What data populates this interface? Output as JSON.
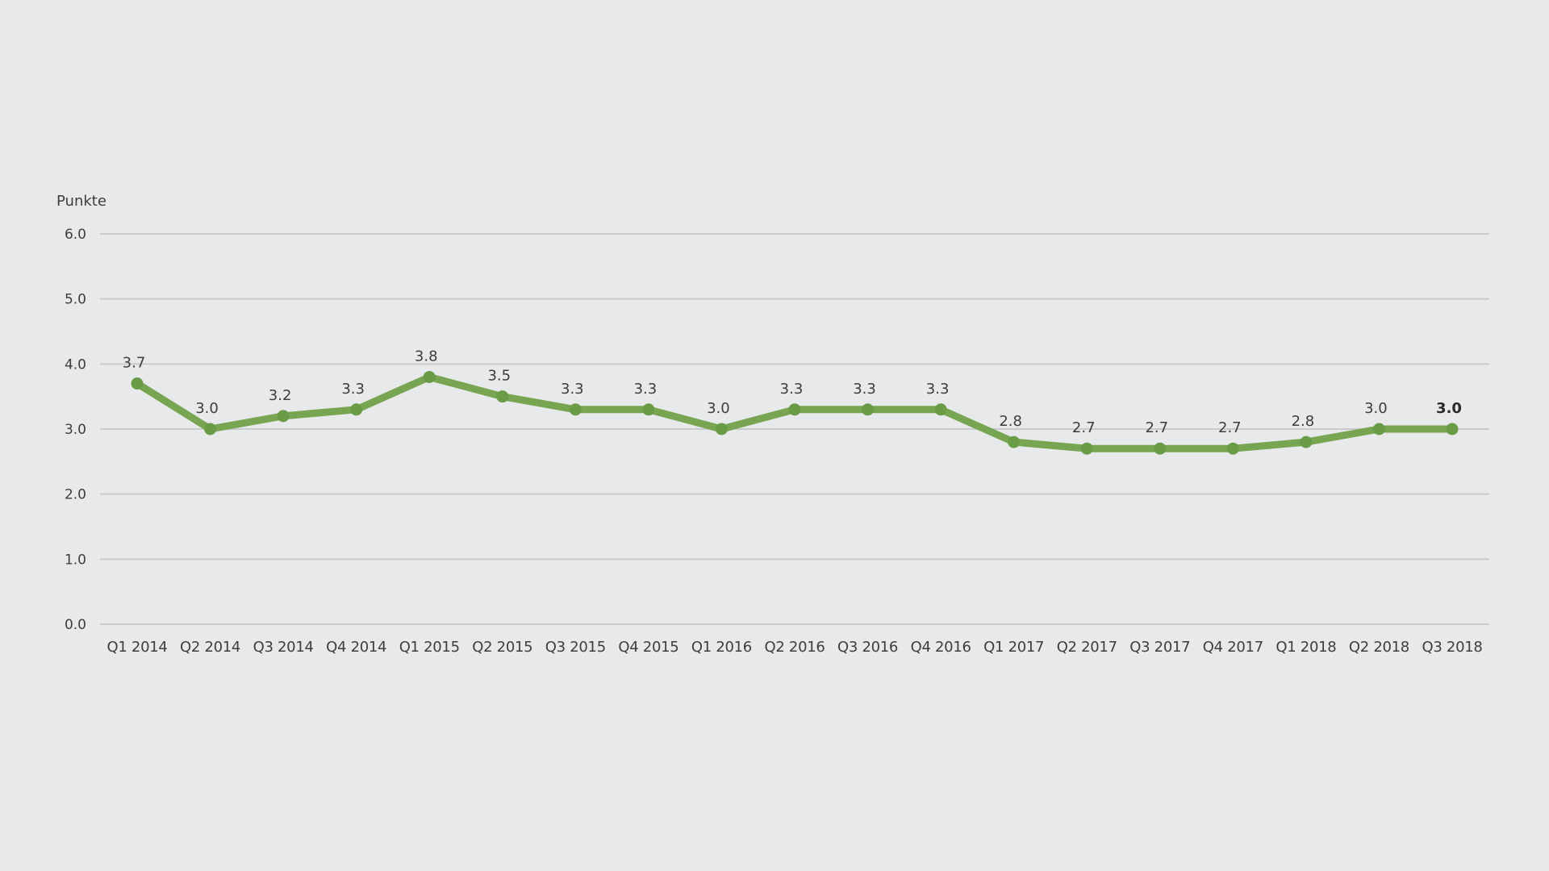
{
  "chart_data": {
    "type": "line",
    "title": "",
    "xlabel": "",
    "ylabel": "Punkte",
    "ylim": [
      0,
      6
    ],
    "yticks": [
      "0.0",
      "1.0",
      "2.0",
      "3.0",
      "4.0",
      "5.0",
      "6.0"
    ],
    "grid": true,
    "legend": "none",
    "categories": [
      "Q1 2014",
      "Q2 2014",
      "Q3 2014",
      "Q4 2014",
      "Q1 2015",
      "Q2 2015",
      "Q3 2015",
      "Q4 2015",
      "Q1 2016",
      "Q2 2016",
      "Q3 2016",
      "Q4 2016",
      "Q1 2017",
      "Q2 2017",
      "Q3 2017",
      "Q4 2017",
      "Q1 2018",
      "Q2 2018",
      "Q3 2018"
    ],
    "series": [
      {
        "name": "Punkte",
        "color": "#77a551",
        "values": [
          3.7,
          3.0,
          3.2,
          3.3,
          3.8,
          3.5,
          3.3,
          3.3,
          3.0,
          3.3,
          3.3,
          3.3,
          2.8,
          2.7,
          2.7,
          2.7,
          2.8,
          3.0,
          3.0
        ],
        "labels": [
          "3.7",
          "3.0",
          "3.2",
          "3.3",
          "3.8",
          "3.5",
          "3.3",
          "3.3",
          "3.0",
          "3.3",
          "3.3",
          "3.3",
          "2.8",
          "2.7",
          "2.7",
          "2.7",
          "2.8",
          "3.0",
          "3.0"
        ]
      }
    ]
  }
}
